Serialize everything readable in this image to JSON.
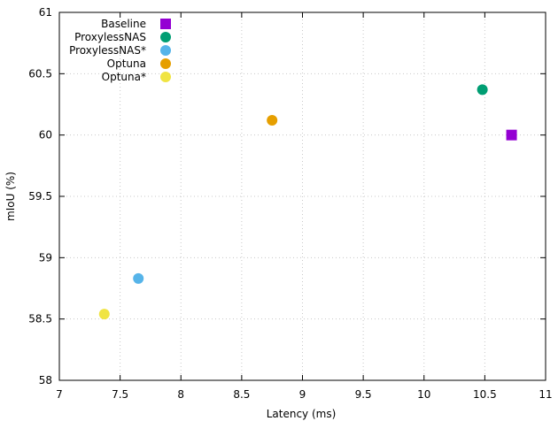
{
  "chart_data": {
    "type": "scatter",
    "xlabel": "Latency (ms)",
    "ylabel": "mIoU (%)",
    "xlim": [
      7,
      11
    ],
    "ylim": [
      58,
      61
    ],
    "x_ticks": [
      7,
      7.5,
      8,
      8.5,
      9,
      9.5,
      10,
      10.5,
      11
    ],
    "x_tick_labels": [
      "7",
      "7.5",
      "8",
      "8.5",
      "9",
      "9.5",
      "10",
      "10.5",
      "11"
    ],
    "y_ticks": [
      58,
      58.5,
      59,
      59.5,
      60,
      60.5,
      61
    ],
    "y_tick_labels": [
      "58",
      "58.5",
      "59",
      "59.5",
      "60",
      "60.5",
      "61"
    ],
    "grid": true,
    "legend_position": "top-left",
    "series": [
      {
        "name": "Baseline",
        "marker": "square",
        "color": "#9400d3",
        "points": [
          [
            10.72,
            60.0
          ]
        ]
      },
      {
        "name": "ProxylessNAS",
        "marker": "circle",
        "color": "#009e73",
        "points": [
          [
            10.48,
            60.37
          ]
        ]
      },
      {
        "name": "ProxylessNAS*",
        "marker": "circle",
        "color": "#56b4e9",
        "points": [
          [
            7.65,
            58.83
          ]
        ]
      },
      {
        "name": "Optuna",
        "marker": "circle",
        "color": "#e69f00",
        "points": [
          [
            8.75,
            60.12
          ]
        ]
      },
      {
        "name": "Optuna*",
        "marker": "circle",
        "color": "#f0e442",
        "points": [
          [
            7.37,
            58.54
          ]
        ]
      }
    ]
  }
}
